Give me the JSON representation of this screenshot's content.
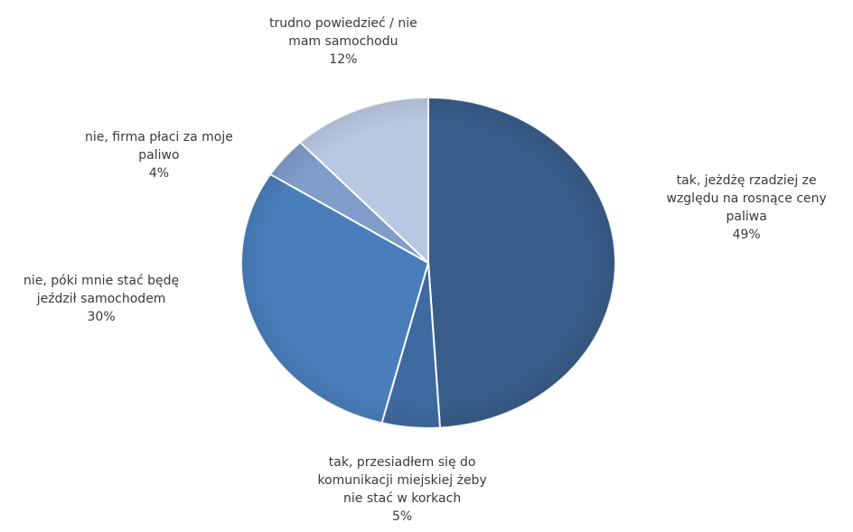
{
  "chart_data": {
    "type": "pie",
    "start_angle_deg": 0,
    "direction": "clockwise",
    "slices": [
      {
        "label": "tak, jeżdżę rzadziej ze względu na rosnące ceny paliwa",
        "label_lines": [
          "tak, jeżdżę rzadziej ze",
          "względu na rosnące ceny",
          "paliwa"
        ],
        "value": 49,
        "value_label": "49%",
        "color": "#385d8a"
      },
      {
        "label": "tak, przesiadłem się do komunikacji miejskiej żeby nie stać w korkach",
        "label_lines": [
          "tak, przesiadłem się do",
          "komunikacji miejskiej żeby",
          "nie stać w korkach"
        ],
        "value": 5,
        "value_label": "5%",
        "color": "#3f6aa0"
      },
      {
        "label": "nie, póki mnie stać będę jeździł samochodem",
        "label_lines": [
          "nie, póki mnie stać będę",
          "jeździł samochodem"
        ],
        "value": 30,
        "value_label": "30%",
        "color": "#4a7ebb"
      },
      {
        "label": "nie, firma płaci za moje paliwo",
        "label_lines": [
          "nie, firma płaci za moje",
          "paliwo"
        ],
        "value": 4,
        "value_label": "4%",
        "color": "#7f9ccb"
      },
      {
        "label": "trudno powiedzieć / nie mam samochodu",
        "label_lines": [
          "trudno powiedzieć / nie",
          "mam samochodu"
        ],
        "value": 12,
        "value_label": "12%",
        "color": "#b9c8e2"
      }
    ]
  }
}
